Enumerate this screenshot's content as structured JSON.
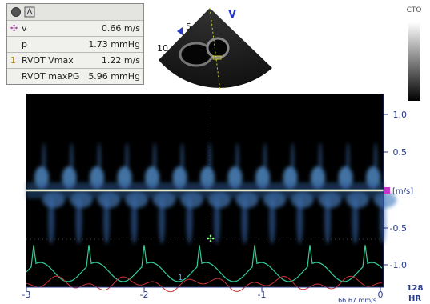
{
  "measurements": [
    {
      "label": "v",
      "value": "0.66 m/s"
    },
    {
      "label": "p",
      "value": "1.73 mmHg"
    },
    {
      "index": "1",
      "label": "RVOT Vmax",
      "value": "1.22 m/s"
    },
    {
      "label": "RVOT maxPG",
      "value": "5.96 mmHg"
    }
  ],
  "probe": {
    "orientation": "V",
    "depths": [
      "5",
      "10"
    ]
  },
  "map_label": "CTO",
  "velocity_axis": {
    "unit": "[m/s]",
    "ticks": [
      "1.0",
      "0.5",
      "-0.5",
      "-1.0"
    ]
  },
  "time_axis": {
    "ticks": [
      "-3",
      "-2",
      "-1",
      "0"
    ]
  },
  "sweep_speed": "66.67 mm/s",
  "heart_rate": {
    "value": "128",
    "label": "HR"
  }
}
